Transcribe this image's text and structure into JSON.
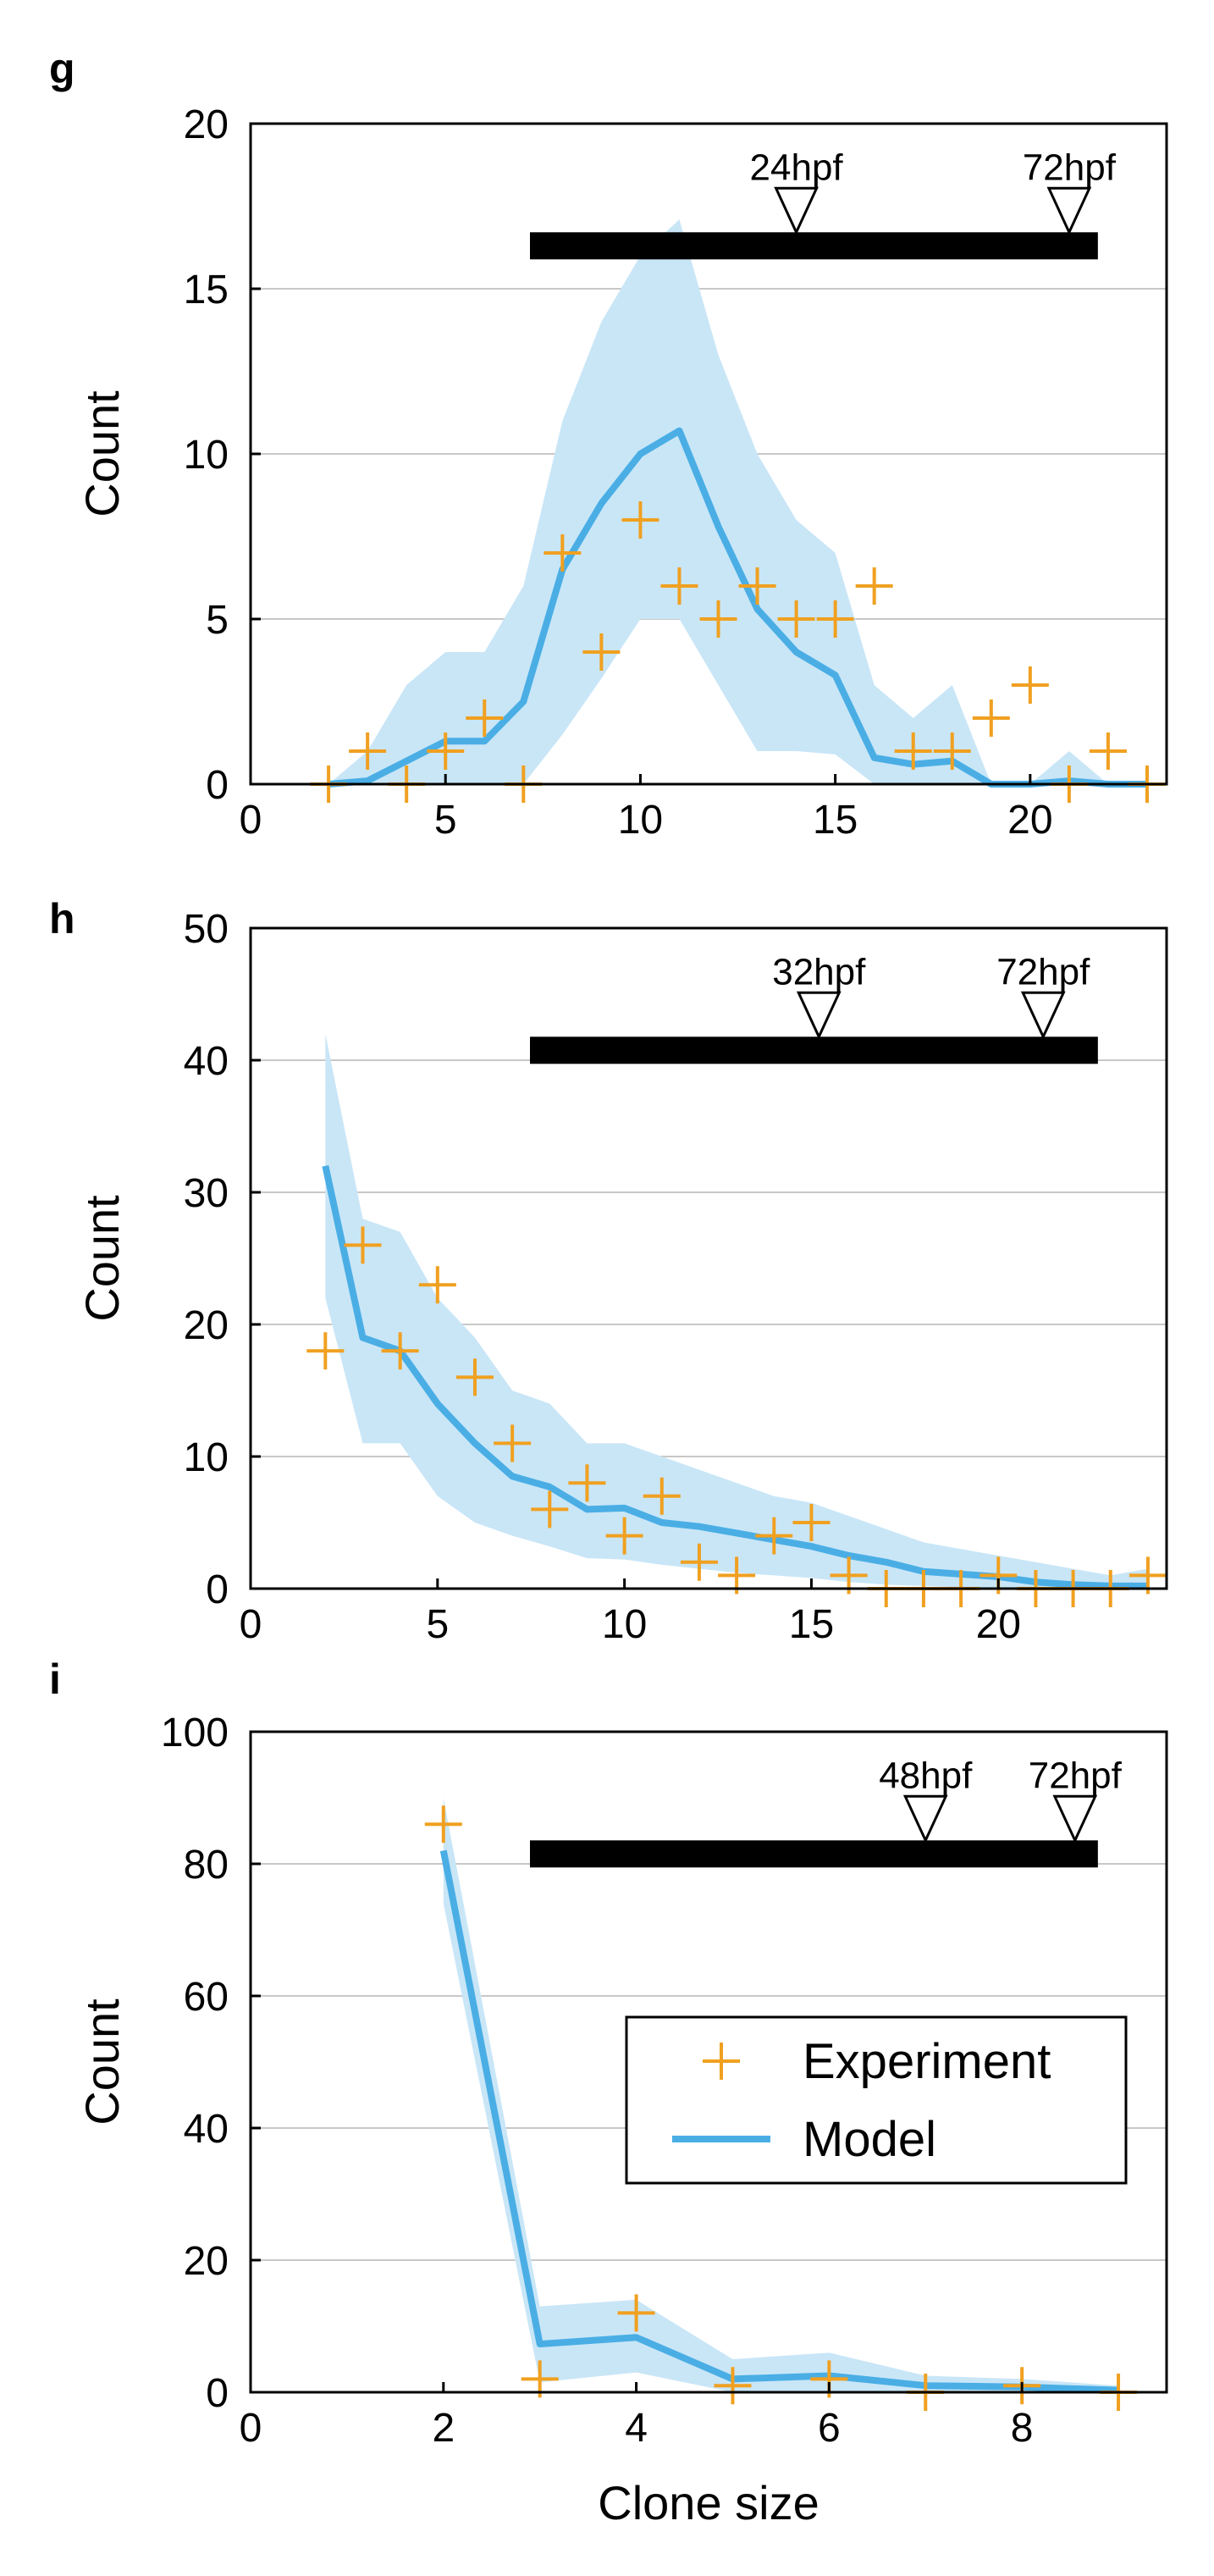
{
  "colors": {
    "experiment": "#f0a020",
    "model": "#4aaee5",
    "band": "#c9e6f7",
    "grid": "#c8c8c8",
    "bar": "#000000"
  },
  "chart_data": [
    {
      "panel": "g",
      "type": "line",
      "xlim": [
        0,
        23.5
      ],
      "ylim": [
        0,
        20
      ],
      "xticks": [
        0,
        5,
        10,
        15,
        20
      ],
      "yticks": [
        0,
        5,
        10,
        15,
        20
      ],
      "xlabel": "",
      "ylabel": "Count",
      "grid": "horizontal",
      "experiment": {
        "x": [
          2,
          3,
          4,
          5,
          6,
          7,
          8,
          9,
          10,
          11,
          12,
          13,
          14,
          15,
          16,
          17,
          18,
          19,
          20,
          21,
          22,
          23
        ],
        "y": [
          0,
          1,
          0,
          1,
          2,
          0,
          7,
          4,
          8,
          6,
          5,
          6,
          5,
          5,
          6,
          1,
          1,
          2,
          3,
          0,
          1,
          0
        ]
      },
      "model": {
        "x": [
          2,
          3,
          4,
          5,
          6,
          7,
          8,
          9,
          10,
          11,
          12,
          13,
          14,
          15,
          16,
          17,
          18,
          19,
          20,
          21,
          22,
          23
        ],
        "y": [
          0,
          0.1,
          0.7,
          1.3,
          1.3,
          2.5,
          6.5,
          8.5,
          10.0,
          10.7,
          7.8,
          5.3,
          4.0,
          3.3,
          0.8,
          0.6,
          0.7,
          0,
          0,
          0.1,
          0,
          0
        ],
        "lower": [
          0,
          0,
          0,
          0,
          0,
          0,
          1.5,
          3.2,
          5,
          5,
          3,
          1,
          1,
          0.9,
          0,
          0,
          0,
          0,
          0,
          0,
          0,
          0
        ],
        "upper": [
          0,
          1,
          3,
          4,
          4,
          6,
          11,
          14,
          16,
          17.1,
          13,
          10,
          8,
          7,
          3,
          2,
          3,
          0,
          0,
          1,
          0,
          0
        ]
      },
      "timeline": {
        "start_label": "24hpf",
        "end_label": "72hpf",
        "start_marker_x": 14,
        "end_marker_x": 21
      }
    },
    {
      "panel": "h",
      "type": "line",
      "xlim": [
        0,
        24.5
      ],
      "ylim": [
        0,
        50
      ],
      "xticks": [
        0,
        5,
        10,
        15,
        20
      ],
      "yticks": [
        0,
        10,
        20,
        30,
        40,
        50
      ],
      "xlabel": "",
      "ylabel": "Count",
      "grid": "horizontal",
      "experiment": {
        "x": [
          2,
          3,
          4,
          5,
          6,
          7,
          8,
          9,
          10,
          11,
          12,
          13,
          14,
          15,
          16,
          17,
          18,
          19,
          20,
          21,
          22,
          23,
          24
        ],
        "y": [
          18,
          26,
          18,
          23,
          16,
          11,
          6,
          8,
          4,
          7,
          2,
          1,
          4,
          5,
          1,
          0,
          0,
          0,
          1,
          0,
          0,
          0,
          1
        ]
      },
      "model": {
        "x": [
          2,
          3,
          4,
          5,
          6,
          7,
          8,
          9,
          10,
          11,
          12,
          13,
          14,
          15,
          16,
          17,
          18,
          19,
          20,
          21,
          22,
          23,
          24
        ],
        "y": [
          32,
          19,
          18,
          14,
          11,
          8.5,
          7.7,
          6,
          6.1,
          5,
          4.7,
          4.2,
          3.7,
          3.2,
          2.5,
          2,
          1.3,
          1.1,
          0.9,
          0.5,
          0.3,
          0.2,
          0.2
        ],
        "lower": [
          22,
          11,
          11,
          7,
          5,
          4,
          3.2,
          2.3,
          2.2,
          1.8,
          1.5,
          1.2,
          1,
          0.8,
          0.5,
          0.3,
          0.2,
          0.1,
          0,
          0,
          0,
          0,
          0
        ],
        "upper": [
          42,
          28,
          27,
          22,
          19,
          15,
          14,
          11,
          11,
          10,
          9,
          8,
          7,
          6.5,
          5.5,
          4.5,
          3.5,
          3,
          2.5,
          2,
          1.5,
          1,
          1.5
        ]
      },
      "timeline": {
        "start_label": "32hpf",
        "end_label": "72hpf",
        "start_marker_x": 15.2,
        "end_marker_x": 21.2
      }
    },
    {
      "panel": "i",
      "type": "line",
      "xlim": [
        0,
        9.5
      ],
      "ylim": [
        0,
        100
      ],
      "xticks": [
        0,
        2,
        4,
        6,
        8
      ],
      "yticks": [
        0,
        20,
        40,
        60,
        80,
        100
      ],
      "xlabel": "Clone size",
      "ylabel": "Count",
      "grid": "horizontal",
      "experiment": {
        "x": [
          2,
          3,
          4,
          5,
          6,
          7,
          8,
          9
        ],
        "y": [
          86,
          2,
          12,
          1,
          2,
          0,
          1,
          0
        ]
      },
      "model": {
        "x": [
          2,
          3,
          4,
          5,
          6,
          7,
          8,
          9
        ],
        "y": [
          82,
          7.3,
          8.3,
          2,
          2.5,
          1,
          0.8,
          0.3
        ],
        "lower": [
          74,
          1.5,
          3,
          0,
          0,
          0,
          0,
          0
        ],
        "upper": [
          90,
          13,
          14,
          5,
          6,
          2.5,
          2,
          1
        ]
      },
      "timeline": {
        "start_label": "48hpf",
        "end_label": "72hpf",
        "start_marker_x": 7.0,
        "end_marker_x": 8.55
      },
      "legend": {
        "position": "center-right",
        "entries": [
          "Experiment",
          "Model"
        ]
      }
    }
  ]
}
